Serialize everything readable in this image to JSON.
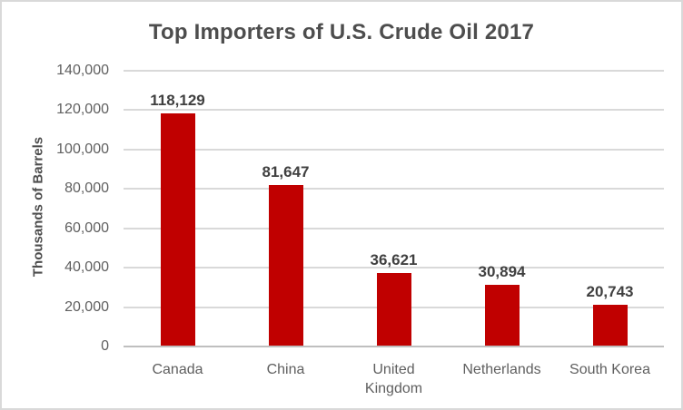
{
  "window": {
    "background_color": "#ffffff",
    "border_color": "#d9d9d9"
  },
  "chart_data": {
    "type": "bar",
    "title": "Top Importers of U.S. Crude Oil 2017",
    "xlabel": "",
    "ylabel": "Thousands of Barrels",
    "categories": [
      "Canada",
      "China",
      "United Kingdom",
      "Netherlands",
      "South Korea"
    ],
    "values": [
      118129,
      81647,
      36621,
      30894,
      20743
    ],
    "data_labels": [
      "118,129",
      "81,647",
      "36,621",
      "30,894",
      "20,743"
    ],
    "ylim": [
      0,
      140000
    ],
    "ytick_step": 20000,
    "ytick_labels": [
      "0",
      "20,000",
      "40,000",
      "60,000",
      "80,000",
      "100,000",
      "120,000",
      "140,000"
    ],
    "grid": true,
    "legend_position": "none",
    "bar_color": "#c00000",
    "gridline_color": "#d9d9d9",
    "axis_line_color": "#bfbfbf",
    "title_color": "#4d4d4d",
    "data_label_color": "#404040",
    "tick_label_color": "#5f5f5f"
  }
}
